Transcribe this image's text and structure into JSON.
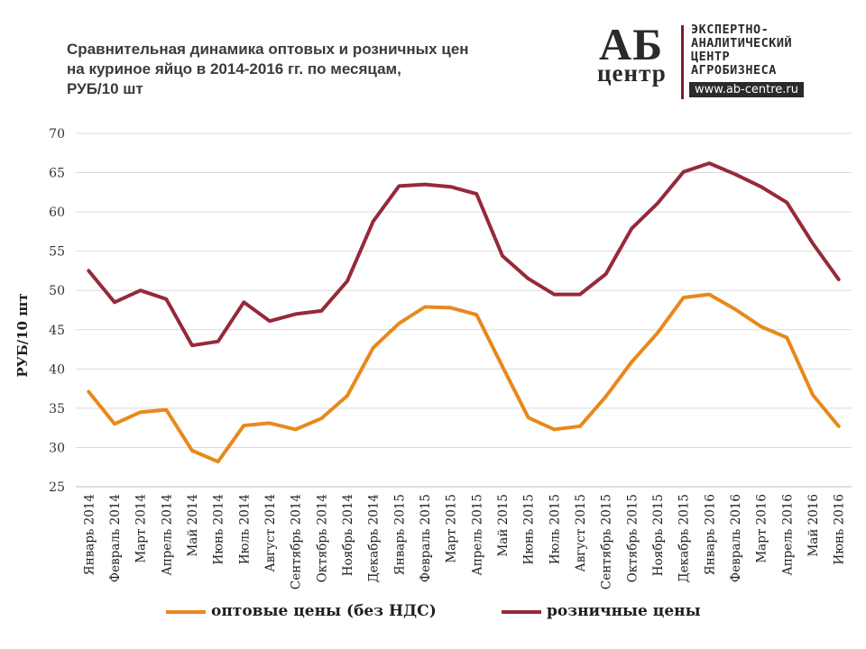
{
  "title_lines": [
    "Сравнительная динамика оптовых и розничных цен",
    "на куриное яйцо в 2014-2016 гг. по месяцам,",
    "РУБ/10 шт"
  ],
  "logo": {
    "mark_top": "АБ",
    "mark_bottom": "центр",
    "text_lines": [
      "ЭКСПЕРТНО-",
      "АНАЛИТИЧЕСКИЙ",
      "ЦЕНТР",
      "АГРОБИЗНЕСА"
    ],
    "url": "www.ab-centre.ru",
    "accent_color": "#7b1e2b"
  },
  "chart_data": {
    "type": "line",
    "title": "Сравнительная динамика оптовых и розничных цен на куриное яйцо в 2014-2016 гг. по месяцам, РУБ/10 шт",
    "ylabel": "РУБ/10 шт",
    "xlabel": "",
    "ylim": [
      25,
      70
    ],
    "yticks": [
      25,
      30,
      35,
      40,
      45,
      50,
      55,
      60,
      65,
      70
    ],
    "grid": true,
    "legend_position": "bottom",
    "categories": [
      "Январь 2014",
      "Февраль 2014",
      "Март 2014",
      "Апрель 2014",
      "Май 2014",
      "Июнь 2014",
      "Июль 2014",
      "Август 2014",
      "Сентябрь 2014",
      "Октябрь 2014",
      "Ноябрь 2014",
      "Декабрь 2014",
      "Январь 2015",
      "Февраль 2015",
      "Март 2015",
      "Апрель 2015",
      "Май 2015",
      "Июнь 2015",
      "Июль 2015",
      "Август 2015",
      "Сентябрь 2015",
      "Октябрь 2015",
      "Ноябрь 2015",
      "Декабрь 2015",
      "Январь 2016",
      "Февраль 2016",
      "Март 2016",
      "Апрель 2016",
      "Май 2016",
      "Июнь 2016"
    ],
    "series": [
      {
        "name": "оптовые цены (без НДС)",
        "color": "#e8891c",
        "values": [
          37.1,
          33.0,
          34.5,
          34.8,
          29.6,
          28.2,
          32.8,
          33.1,
          32.3,
          33.7,
          36.6,
          42.7,
          45.8,
          47.9,
          47.8,
          46.9,
          40.3,
          33.8,
          32.3,
          32.7,
          36.5,
          40.9,
          44.6,
          49.1,
          49.5,
          47.6,
          45.4,
          44.0,
          36.7,
          32.7
        ]
      },
      {
        "name": "розничные цены",
        "color": "#96293b",
        "values": [
          52.5,
          48.5,
          50.0,
          48.9,
          43.0,
          43.5,
          48.5,
          46.1,
          47.0,
          47.4,
          51.2,
          58.8,
          63.3,
          63.5,
          63.2,
          62.3,
          54.4,
          51.5,
          49.5,
          49.5,
          52.1,
          57.9,
          61.1,
          65.1,
          66.2,
          64.8,
          63.2,
          61.2,
          56.0,
          51.4
        ]
      }
    ]
  }
}
